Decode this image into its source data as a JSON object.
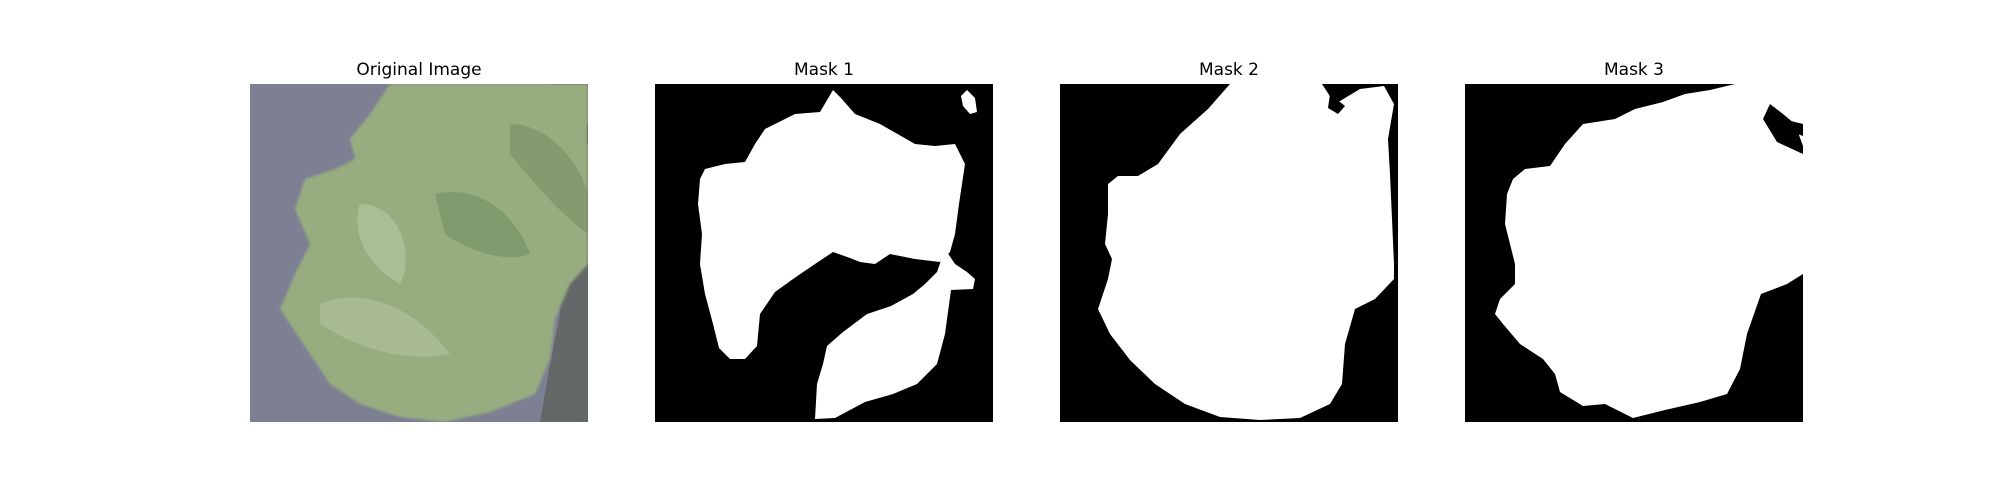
{
  "figure": {
    "panels": [
      {
        "title": "Original Image",
        "content": "leaf photo"
      },
      {
        "title": "Mask 1",
        "content": "segmentation mask"
      },
      {
        "title": "Mask 2",
        "content": "segmentation mask"
      },
      {
        "title": "Mask 3",
        "content": "segmentation mask"
      }
    ]
  },
  "colors": {
    "background": "#ffffff",
    "mask_foreground": "#ffffff",
    "mask_background": "#000000",
    "photo_background": "#7d7f93",
    "leaf_base": "#97ad80",
    "leaf_dark": "#6e8d5c"
  }
}
